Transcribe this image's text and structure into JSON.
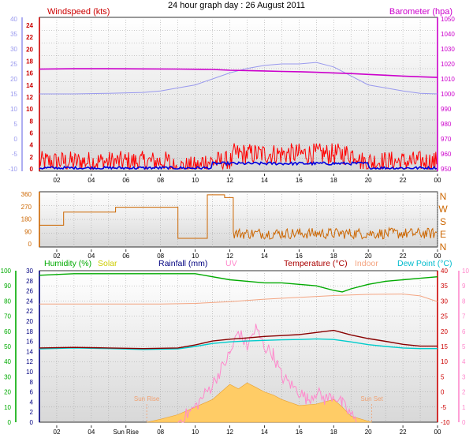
{
  "title": "24 hour graph day : 26 August 2011",
  "colors": {
    "wind_speed": "#ff0000",
    "wind_avg": "#0000dd",
    "barometer": "#cc00cc",
    "temp_axis": "#9999ee",
    "wind_dir": "#cc6600",
    "humidity": "#00aa00",
    "solar": "#ffcc66",
    "rainfall": "#000080",
    "uv": "#ff88cc",
    "temperature": "#880000",
    "indoor": "#f4a582",
    "dew_point": "#00cccc",
    "plot_bg_top": "#ffffff",
    "plot_bg_bottom": "#d8d8d8",
    "grid": "#999999"
  },
  "chart_data": [
    {
      "type": "line",
      "panel": "wind_barometer",
      "title": "24 hour graph day : 26 August 2011",
      "left_label": "Windspeed (kts)",
      "right_label": "Barometer (hpa)",
      "hour_ticks": [
        "02",
        "04",
        "06",
        "08",
        "10",
        "12",
        "14",
        "16",
        "18",
        "20",
        "22",
        "00"
      ],
      "hours_range": [
        1,
        24
      ],
      "wind_axis": {
        "ticks": [
          "24",
          "22",
          "20",
          "18",
          "16",
          "14",
          "12",
          "10",
          "8",
          "6",
          "4",
          "2",
          "0"
        ],
        "range": [
          0,
          24
        ]
      },
      "temp_axis": {
        "ticks": [
          "40",
          "35",
          "30",
          "25",
          "20",
          "15",
          "10",
          "5",
          "0",
          "-5",
          "-10"
        ],
        "range": [
          -10,
          40
        ]
      },
      "baro_axis": {
        "ticks": [
          "1050",
          "1040",
          "1030",
          "1020",
          "1010",
          "1000",
          "990",
          "980",
          "970",
          "960",
          "950"
        ],
        "range": [
          950,
          1050
        ]
      },
      "series": [
        {
          "name": "Barometer (hpa)",
          "axis": "baro",
          "x": [
            1,
            3,
            5,
            7,
            9,
            11,
            12,
            13,
            14,
            15,
            16,
            17,
            18,
            19,
            20,
            21,
            22,
            23,
            24
          ],
          "y": [
            1016.5,
            1016.8,
            1016.8,
            1016.7,
            1016.6,
            1016.3,
            1015.8,
            1015.6,
            1015.3,
            1015.0,
            1014.8,
            1014.4,
            1014.0,
            1013.6,
            1013.0,
            1012.5,
            1011.9,
            1011.4,
            1011.0
          ]
        },
        {
          "axis": "temp",
          "x": [
            1,
            3,
            5,
            7,
            8,
            9,
            10,
            11,
            12,
            13,
            14,
            15,
            16,
            17,
            18,
            19,
            20,
            21,
            22,
            23,
            24
          ],
          "y": [
            15,
            15,
            15.2,
            15.5,
            16,
            17,
            18,
            20,
            22,
            23.5,
            24.5,
            25,
            25,
            25.5,
            24,
            21,
            18,
            17,
            16,
            15.2,
            15
          ]
        },
        {
          "axis": "wind",
          "value_range": [
            0,
            5
          ]
        },
        {
          "axis": "wind",
          "value_range": [
            0,
            1.5
          ]
        }
      ]
    },
    {
      "type": "line",
      "panel": "wind_direction",
      "ticks": [
        "360",
        "270",
        "180",
        "90",
        "0"
      ],
      "range": [
        0,
        360
      ],
      "compass_labels": [
        "N",
        "W",
        "S",
        "E",
        "N"
      ],
      "hour_ticks": [
        "02",
        "04",
        "06",
        "08",
        "10",
        "12",
        "14",
        "16",
        "18",
        "20",
        "22",
        "00"
      ],
      "series": [
        {
          "x": [
            1,
            2,
            2.4,
            3,
            4.5,
            5.4,
            8.9,
            9.0,
            10.6,
            10.7,
            11.6,
            11.7,
            12.1,
            12.2,
            24
          ],
          "y": [
            135,
            135,
            230,
            230,
            230,
            265,
            265,
            40,
            40,
            355,
            355,
            335,
            335,
            75,
            75
          ]
        }
      ]
    },
    {
      "type": "area",
      "panel": "humidity_temp_solar",
      "legend": [
        "Humidity (%)",
        "Solar",
        "Rainfall (mm)",
        "UV",
        "Temperature (°C)",
        "Indoor",
        "Dew Point (°C)"
      ],
      "humidity_axis": {
        "ticks": [
          "100",
          "90",
          "80",
          "70",
          "60",
          "50",
          "40",
          "30",
          "20",
          "10",
          "0"
        ],
        "range": [
          0,
          100
        ]
      },
      "rain_axis": {
        "ticks": [
          "30",
          "28",
          "26",
          "24",
          "22",
          "20",
          "18",
          "16",
          "14",
          "12",
          "10",
          "8",
          "6",
          "4",
          "2",
          "0"
        ],
        "range": [
          0,
          30
        ]
      },
      "temp_axis": {
        "ticks": [
          "40",
          "35",
          "30",
          "25",
          "20",
          "15",
          "10",
          "5",
          "0",
          "-5",
          "-10"
        ],
        "range": [
          -10,
          40
        ]
      },
      "uv_axis": {
        "ticks": [
          "10",
          "9",
          "8",
          "7",
          "6",
          "5",
          "4",
          "3",
          "2",
          "1",
          "0"
        ],
        "range": [
          0,
          10
        ]
      },
      "hour_ticks": [
        "02",
        "04",
        "Sun Rise",
        "08",
        "10",
        "12",
        "14",
        "16",
        "18",
        "20",
        "22",
        "00"
      ],
      "sunrise_label": "Sun Rise",
      "sunset_label": "Sun Set",
      "sunrise_hour": 7.2,
      "sunset_hour": 20.2,
      "series": [
        {
          "name": "Humidity (%)",
          "axis": "humidity",
          "x": [
            1,
            3,
            5,
            7,
            9,
            10,
            11,
            12,
            13,
            14,
            15,
            16,
            17,
            18,
            18.5,
            19,
            20,
            21,
            22,
            23,
            24
          ],
          "y": [
            97,
            98,
            98,
            98,
            98,
            98,
            96,
            94,
            93,
            92,
            92,
            91,
            90,
            87,
            86,
            88,
            91,
            93,
            94,
            95,
            96
          ]
        },
        {
          "name": "Indoor",
          "axis": "temp",
          "x": [
            1,
            4,
            8,
            10,
            12,
            14,
            16,
            18,
            20,
            22,
            23,
            24
          ],
          "y": [
            29,
            29,
            29,
            29.2,
            29.8,
            30.6,
            31.2,
            31.8,
            32.2,
            32.3,
            31.7,
            29.8
          ]
        },
        {
          "name": "Temperature (°C)",
          "axis": "temp",
          "x": [
            1,
            3,
            5,
            7,
            9,
            10,
            11,
            12,
            13,
            14,
            15,
            16,
            17,
            18,
            19,
            20,
            21,
            22,
            23,
            24
          ],
          "y": [
            14.5,
            14.7,
            14.5,
            14.3,
            14.5,
            15.5,
            16.8,
            17.4,
            17.8,
            18.3,
            18.6,
            18.9,
            19.6,
            20.3,
            18.8,
            17.6,
            16.7,
            15.7,
            15.1,
            15.1
          ]
        },
        {
          "name": "Dew Point (°C)",
          "axis": "temp",
          "x": [
            1,
            3,
            5,
            7,
            9,
            10,
            11,
            12,
            13,
            14,
            15,
            16,
            17,
            18,
            19,
            20,
            21,
            22,
            23,
            24
          ],
          "y": [
            14.2,
            14.5,
            14.3,
            14.0,
            14.2,
            15.0,
            16.0,
            16.5,
            16.8,
            17.0,
            17.2,
            17.3,
            17.5,
            17.3,
            16.5,
            15.6,
            15.0,
            14.5,
            14.3,
            14.3
          ]
        },
        {
          "name": "Solar",
          "axis": "uv",
          "x": [
            7.2,
            8,
            9,
            10,
            11,
            11.5,
            12,
            12.5,
            13,
            13.5,
            14,
            14.5,
            15,
            16,
            17,
            18,
            18.5,
            19,
            20.2
          ],
          "y": [
            0,
            0.2,
            0.5,
            1.0,
            1.5,
            2.0,
            2.5,
            2.2,
            2.6,
            2.3,
            2.0,
            1.8,
            1.5,
            1.1,
            1.2,
            1.5,
            1.0,
            0.4,
            0
          ]
        },
        {
          "name": "UV",
          "axis": "uv",
          "x": [
            9,
            10,
            11,
            11.5,
            12,
            12.5,
            13,
            13.5,
            14,
            14.5,
            15,
            15.5,
            16,
            16.5,
            17,
            17.5,
            18,
            18.5,
            19,
            19.3
          ],
          "y": [
            0,
            1.0,
            2.5,
            3.5,
            4.5,
            6.0,
            5.0,
            6.2,
            5.0,
            4.5,
            3.0,
            2.5,
            2.0,
            1.5,
            2.0,
            1.5,
            1.8,
            1.2,
            0.5,
            0
          ]
        }
      ]
    }
  ]
}
